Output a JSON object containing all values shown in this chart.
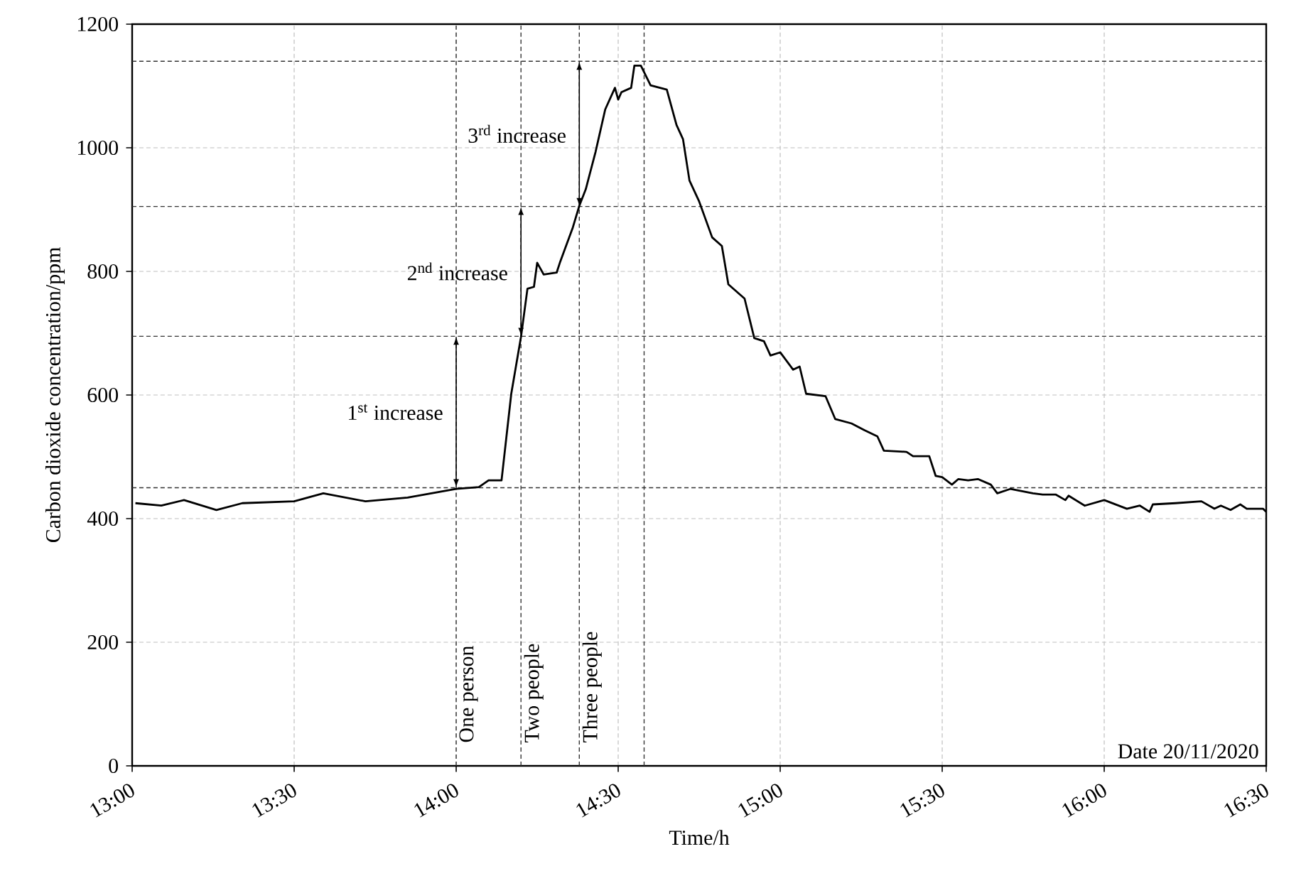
{
  "chart_data": {
    "type": "line",
    "xlabel": "Time/h",
    "ylabel": "Carbon dioxide concentration/ppm",
    "xlim": [
      13,
      16.5
    ],
    "xticks": [
      {
        "value": 13,
        "label": "13:00"
      },
      {
        "value": 13.5,
        "label": "13:30"
      },
      {
        "value": 14,
        "label": "14:00"
      },
      {
        "value": 14.5,
        "label": "14:30"
      },
      {
        "value": 15,
        "label": "15:00"
      },
      {
        "value": 15.5,
        "label": "15:30"
      },
      {
        "value": 16,
        "label": "16:00"
      },
      {
        "value": 16.5,
        "label": "16:30"
      }
    ],
    "ylim": [
      0,
      1200
    ],
    "yticks": [
      0,
      200,
      400,
      600,
      800,
      1000,
      1200
    ],
    "grid": true,
    "marker": "none",
    "line_style": "solid",
    "series": [
      {
        "color": "#000000",
        "x": [
          13.01,
          13.09,
          13.16,
          13.26,
          13.34,
          13.5,
          13.59,
          13.72,
          13.85,
          14.0,
          14.07,
          14.1,
          14.14,
          14.17,
          14.2,
          14.22,
          14.24,
          14.25,
          14.27,
          14.31,
          14.32,
          14.36,
          14.38,
          14.4,
          14.43,
          14.46,
          14.49,
          14.5,
          14.51,
          14.54,
          14.55,
          14.57,
          14.6,
          14.65,
          14.68,
          14.7,
          14.72,
          14.75,
          14.79,
          14.82,
          14.84,
          14.89,
          14.92,
          14.95,
          14.97,
          15.0,
          15.04,
          15.06,
          15.08,
          15.14,
          15.17,
          15.22,
          15.26,
          15.3,
          15.32,
          15.39,
          15.41,
          15.46,
          15.48,
          15.5,
          15.53,
          15.55,
          15.58,
          15.61,
          15.65,
          15.67,
          15.71,
          15.78,
          15.81,
          15.85,
          15.88,
          15.89,
          15.94,
          16.0,
          16.07,
          16.11,
          16.14,
          16.15,
          16.22,
          16.3,
          16.34,
          16.36,
          16.39,
          16.42,
          16.44,
          16.49,
          16.5
        ],
        "values": [
          425,
          421,
          430,
          414,
          425,
          428,
          441,
          428,
          434,
          448,
          451,
          462,
          462,
          602,
          694,
          772,
          775,
          814,
          795,
          798,
          814,
          871,
          906,
          933,
          993,
          1062,
          1097,
          1078,
          1090,
          1097,
          1133,
          1133,
          1101,
          1094,
          1037,
          1014,
          947,
          913,
          855,
          841,
          779,
          756,
          692,
          687,
          664,
          669,
          641,
          646,
          602,
          598,
          561,
          554,
          543,
          533,
          510,
          508,
          501,
          501,
          469,
          467,
          455,
          464,
          462,
          464,
          455,
          441,
          448,
          441,
          439,
          439,
          430,
          437,
          421,
          430,
          416,
          421,
          411,
          423,
          425,
          428,
          416,
          421,
          414,
          423,
          416,
          416,
          411
        ]
      }
    ],
    "ref_lines": [
      {
        "axis": "y",
        "value": 450,
        "color": "#333333",
        "line_style": "dashed"
      },
      {
        "axis": "y",
        "value": 695,
        "color": "#333333",
        "line_style": "dashed"
      },
      {
        "axis": "y",
        "value": 905,
        "color": "#333333",
        "line_style": "dashed"
      },
      {
        "axis": "y",
        "value": 1140,
        "color": "#333333",
        "line_style": "dashed"
      },
      {
        "axis": "x",
        "value": 14.0,
        "label": "One person",
        "color": "#333333",
        "line_style": "dashed"
      },
      {
        "axis": "x",
        "value": 14.2,
        "label": "Two people",
        "color": "#333333",
        "line_style": "dashed"
      },
      {
        "axis": "x",
        "value": 14.38,
        "label": "Three people",
        "color": "#333333",
        "line_style": "dashed"
      },
      {
        "axis": "x",
        "value": 14.58,
        "color": "#333333",
        "line_style": "dashed"
      }
    ],
    "annotations": [
      "1$^{st}$ increase",
      "2$^{nd}$ increase",
      "3$^{rd}$ increase",
      "Date 20/11/2020"
    ]
  }
}
